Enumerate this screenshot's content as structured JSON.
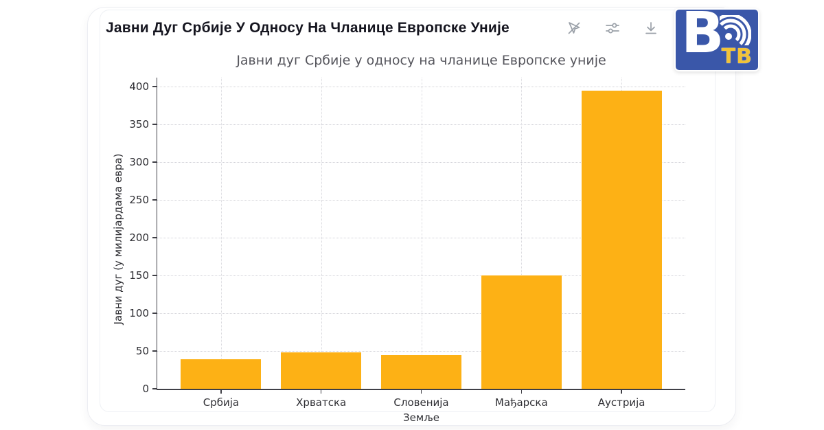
{
  "header": {
    "title": "Јавни Дуг Србије У Односу На Чланице Европске Уније",
    "toolbar": {
      "icons": [
        "cursor-off",
        "sliders",
        "download"
      ]
    }
  },
  "logo": {
    "letter": "В",
    "suffix": "ТВ",
    "bg_color": "#3A57A9",
    "accent_color": "#F1C338"
  },
  "chart_data": {
    "type": "bar",
    "title": "Јавни дуг Србије у односу на чланице Европске уније",
    "categories": [
      "Србија",
      "Хрватска",
      "Словенија",
      "Мађарска",
      "Аустрија"
    ],
    "values": [
      39,
      48,
      45,
      150,
      395
    ],
    "xlabel": "Земље",
    "ylabel": "Јавни дуг (у милијардама евра)",
    "ylim": [
      0,
      400
    ],
    "yticks": [
      0,
      50,
      100,
      150,
      200,
      250,
      300,
      350,
      400
    ],
    "bar_color": "#FDB115",
    "grid": "dashed-both-axes",
    "legend": "none"
  }
}
